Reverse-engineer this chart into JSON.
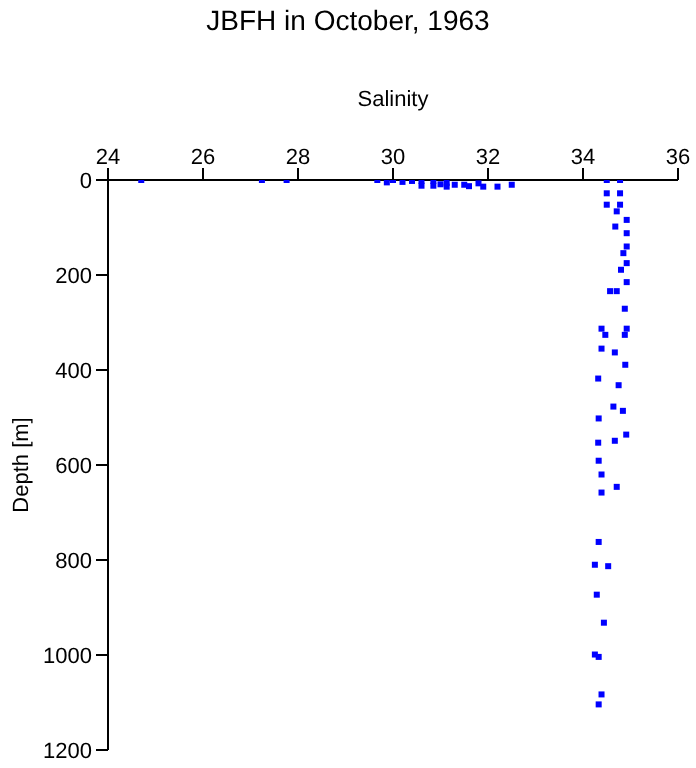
{
  "chart_data": {
    "type": "scatter",
    "title": "JBFH in October, 1963",
    "xlabel": "Salinity",
    "ylabel": "Depth [m]",
    "xlim": [
      24,
      36
    ],
    "xticks": [
      24,
      26,
      28,
      30,
      32,
      34,
      36
    ],
    "ylim": [
      1200,
      0
    ],
    "yticks": [
      0,
      200,
      400,
      600,
      800,
      1000,
      1200
    ],
    "grid": false,
    "marker": "square",
    "series": [
      {
        "color": "#0000ff",
        "x": [
          24.7,
          27.24,
          27.76,
          29.67,
          29.87,
          30.0,
          30.2,
          30.4,
          30.6,
          30.85,
          30.85,
          31.0,
          31.13,
          31.3,
          31.5,
          31.6,
          31.8,
          31.9,
          32.2,
          32.5,
          31.13,
          30.6,
          34.5,
          34.78,
          34.5,
          34.78,
          34.5,
          34.78,
          34.71,
          34.92,
          34.68,
          34.92,
          34.92,
          34.85,
          34.92,
          34.8,
          34.92,
          34.57,
          34.71,
          34.88,
          34.39,
          34.47,
          34.88,
          34.92,
          34.39,
          34.67,
          34.89,
          34.32,
          34.75,
          34.64,
          34.84,
          34.33,
          34.91,
          34.67,
          34.32,
          34.33,
          34.39,
          34.71,
          34.39,
          34.33,
          34.25,
          34.53,
          34.29,
          34.44,
          34.25,
          34.33,
          34.39,
          34.33
        ],
        "values": [
          0,
          0,
          0,
          0,
          5,
          0,
          4,
          2,
          2,
          2,
          12,
          9,
          14,
          10,
          10,
          13,
          7,
          14,
          14,
          10,
          6,
          12,
          0,
          0,
          28,
          28,
          52,
          52,
          66,
          84,
          98,
          112,
          140,
          154,
          175,
          189,
          215,
          234,
          234,
          271,
          313,
          326,
          326,
          313,
          355,
          363,
          389,
          418,
          432,
          477,
          486,
          502,
          536,
          549,
          553,
          591,
          620,
          646,
          658,
          762,
          810,
          813,
          873,
          932,
          999,
          1004,
          1083,
          1104
        ]
      }
    ]
  }
}
